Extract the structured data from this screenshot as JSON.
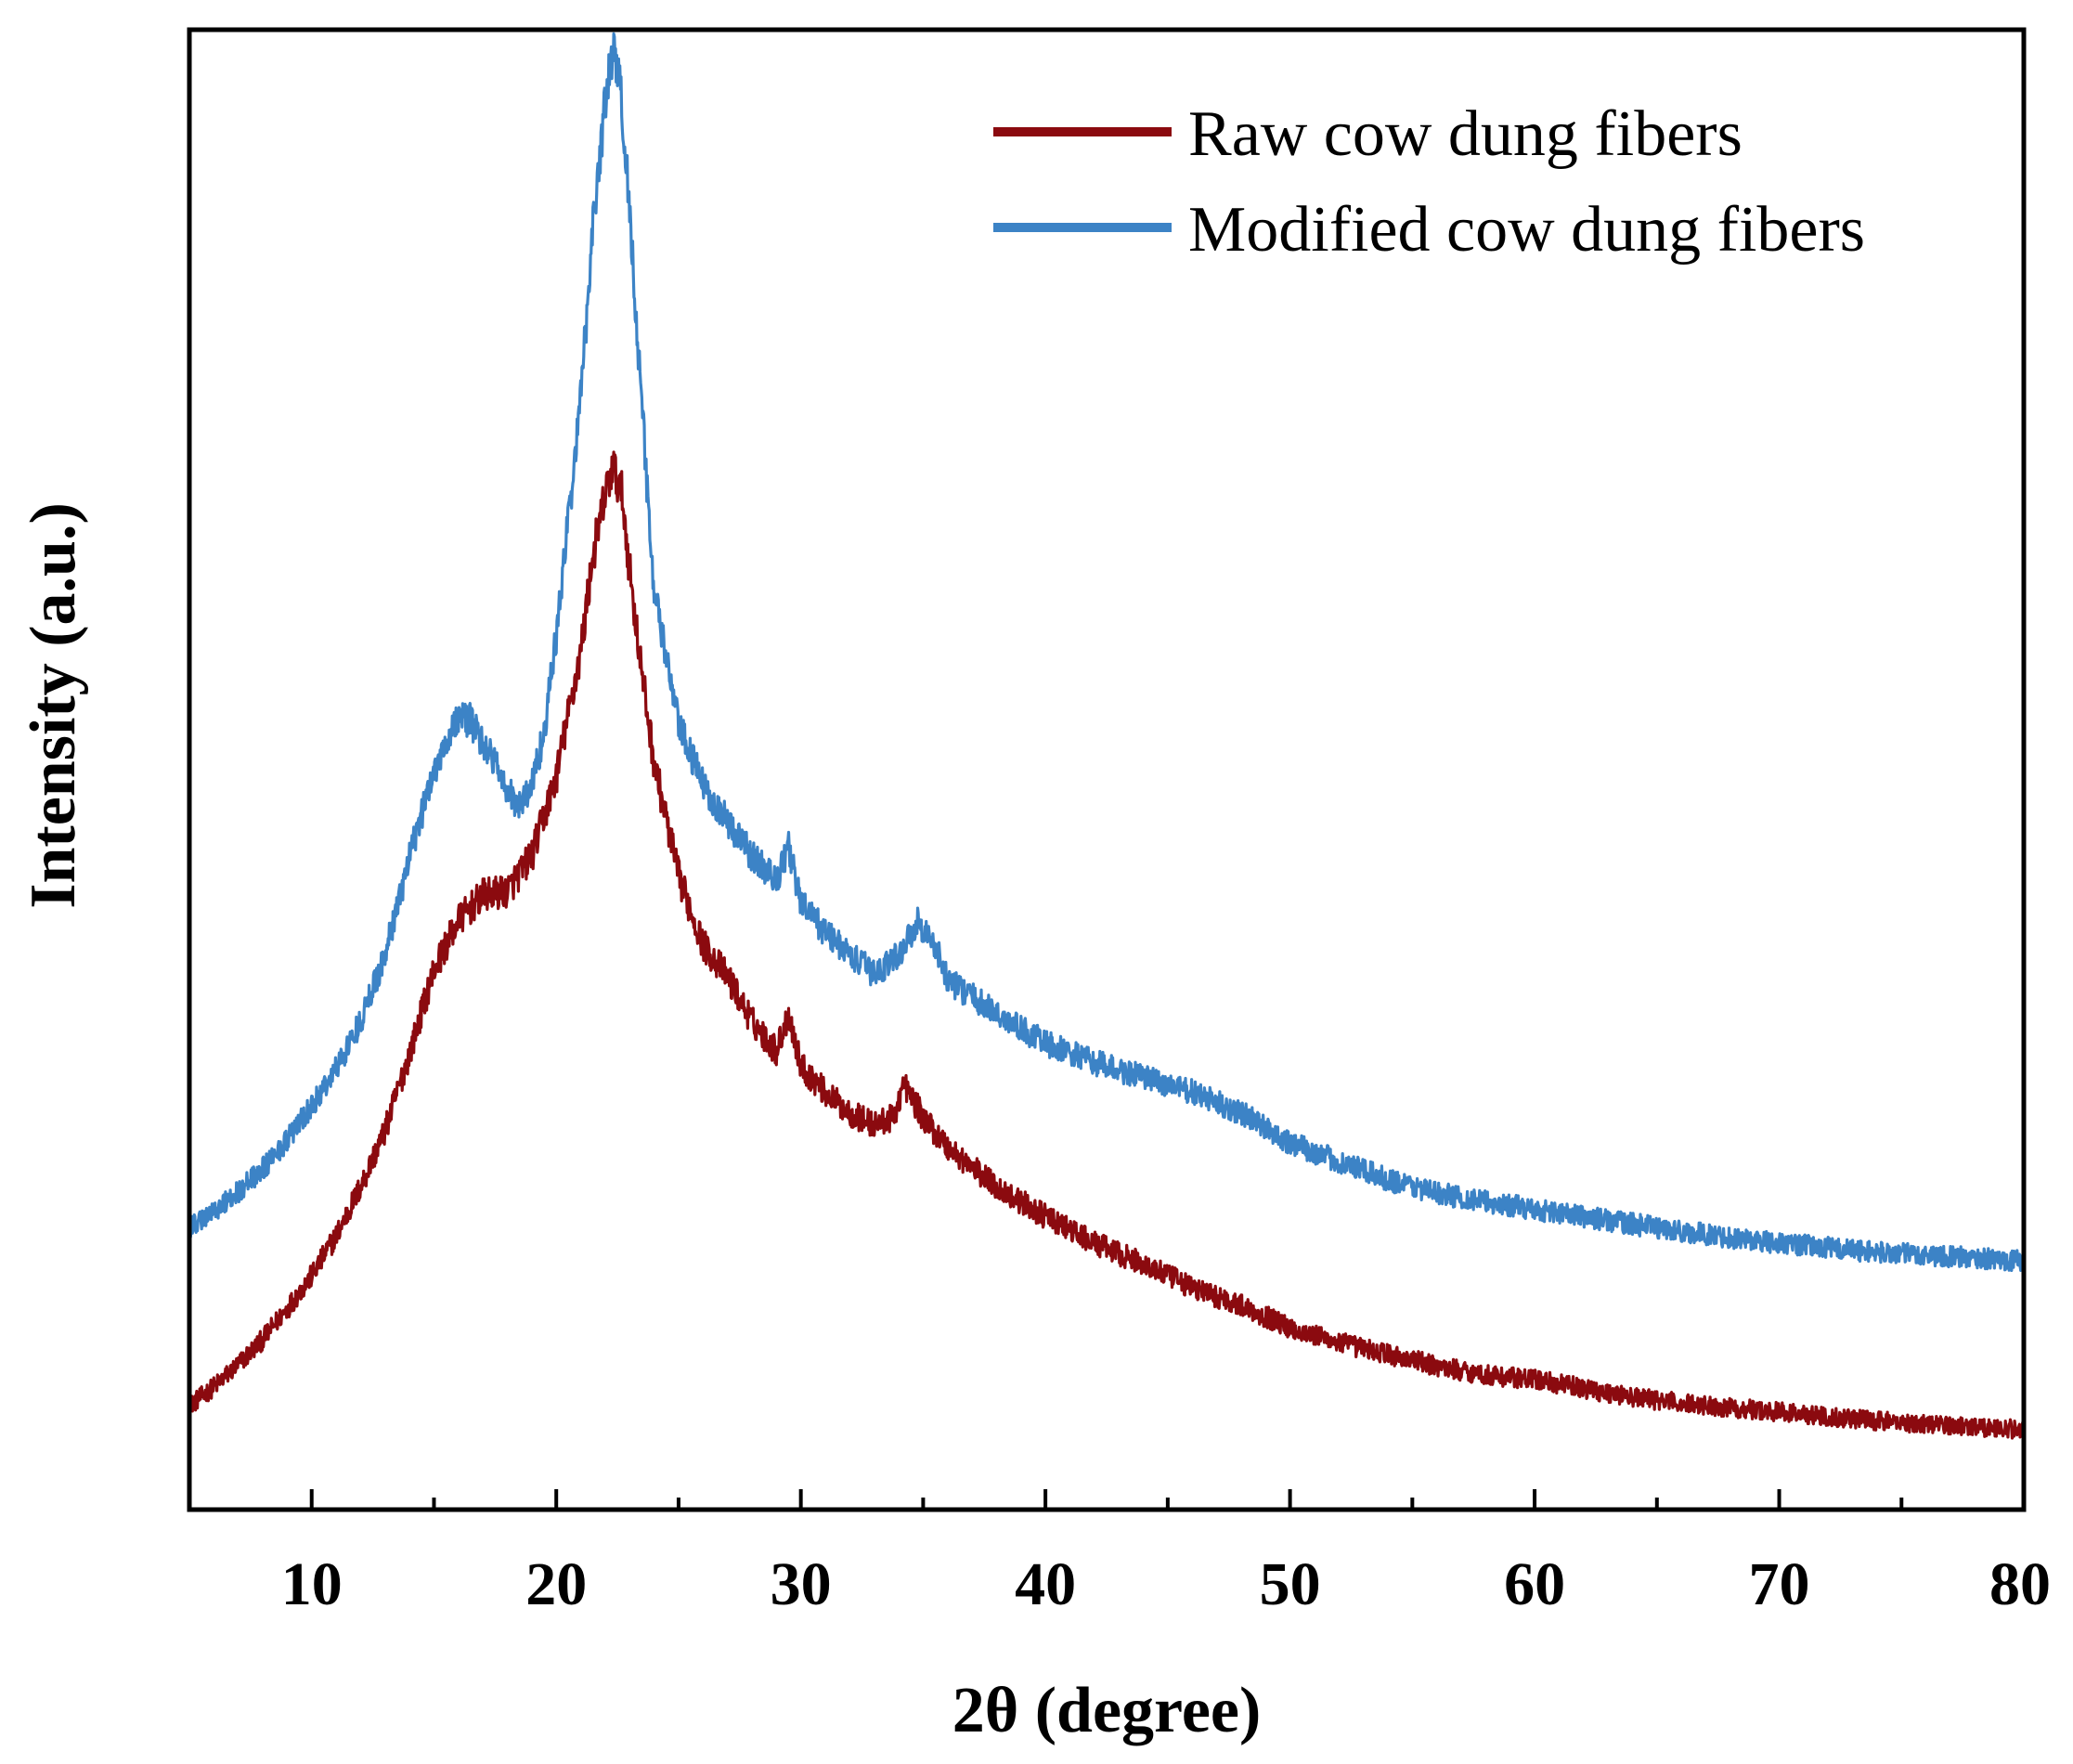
{
  "chart_data": {
    "type": "line",
    "title": "",
    "xlabel": "2θ (degree)",
    "ylabel": "Intensity (a.u.)",
    "xlim": [
      5,
      80
    ],
    "ylim": [
      0,
      100
    ],
    "xticks": [
      10,
      20,
      30,
      40,
      50,
      60,
      70,
      80
    ],
    "x_minor_step": 5,
    "yticks_visible": false,
    "grid": false,
    "legend_position": "top-right",
    "series": [
      {
        "name": "Raw cow dung fibers",
        "color": "#8B0A0F",
        "noise": 1.0,
        "points": [
          [
            5,
            7.0
          ],
          [
            6,
            8.3
          ],
          [
            7,
            9.8
          ],
          [
            8,
            11.5
          ],
          [
            9,
            13.6
          ],
          [
            10,
            15.8
          ],
          [
            11,
            18.5
          ],
          [
            12,
            21.8
          ],
          [
            13,
            25.6
          ],
          [
            14,
            30.8
          ],
          [
            15,
            36.5
          ],
          [
            16,
            39.8
          ],
          [
            17,
            41.5
          ],
          [
            18,
            41.8
          ],
          [
            19,
            44.2
          ],
          [
            20,
            49.5
          ],
          [
            21,
            58.0
          ],
          [
            21.5,
            64.5
          ],
          [
            22,
            68.5
          ],
          [
            22.3,
            70.5
          ],
          [
            22.7,
            68.5
          ],
          [
            23,
            63.5
          ],
          [
            23.5,
            56.5
          ],
          [
            24,
            50.5
          ],
          [
            25,
            42.8
          ],
          [
            26,
            38.2
          ],
          [
            27,
            36.0
          ],
          [
            28,
            33.0
          ],
          [
            29,
            31.0
          ],
          [
            29.5,
            33.5
          ],
          [
            30,
            30.0
          ],
          [
            31,
            28.2
          ],
          [
            32,
            26.8
          ],
          [
            33,
            26.0
          ],
          [
            33.8,
            26.5
          ],
          [
            34.2,
            28.8
          ],
          [
            35,
            26.5
          ],
          [
            36,
            24.5
          ],
          [
            38,
            21.8
          ],
          [
            40,
            19.8
          ],
          [
            42,
            18.0
          ],
          [
            44,
            16.6
          ],
          [
            46,
            15.0
          ],
          [
            48,
            13.8
          ],
          [
            50,
            12.3
          ],
          [
            50.5,
            12.0
          ],
          [
            52,
            11.3
          ],
          [
            54,
            10.5
          ],
          [
            56,
            9.7
          ],
          [
            58,
            9.1
          ],
          [
            60,
            8.8
          ],
          [
            62,
            8.2
          ],
          [
            64,
            7.6
          ],
          [
            66,
            7.2
          ],
          [
            68,
            6.9
          ],
          [
            70,
            6.6
          ],
          [
            72,
            6.3
          ],
          [
            74,
            6.0
          ],
          [
            76,
            5.8
          ],
          [
            78,
            5.6
          ],
          [
            80,
            5.4
          ]
        ]
      },
      {
        "name": "Modified cow dung fibers",
        "color": "#3C83C6",
        "noise": 0.9,
        "points": [
          [
            5,
            19.0
          ],
          [
            6,
            20.2
          ],
          [
            7,
            21.5
          ],
          [
            8,
            23.0
          ],
          [
            9,
            25.0
          ],
          [
            10,
            27.2
          ],
          [
            11,
            29.8
          ],
          [
            12,
            33.0
          ],
          [
            13,
            37.5
          ],
          [
            14,
            44.0
          ],
          [
            15,
            50.0
          ],
          [
            15.5,
            52.0
          ],
          [
            16,
            53.5
          ],
          [
            16.5,
            53.3
          ],
          [
            17,
            51.8
          ],
          [
            17.5,
            50.5
          ],
          [
            18,
            48.5
          ],
          [
            18.5,
            47.5
          ],
          [
            19,
            49.0
          ],
          [
            19.5,
            52.5
          ],
          [
            20,
            59.0
          ],
          [
            21,
            75.0
          ],
          [
            21.5,
            87.0
          ],
          [
            22,
            95.0
          ],
          [
            22.3,
            98.5
          ],
          [
            22.6,
            96.5
          ],
          [
            23,
            88.0
          ],
          [
            23.5,
            74.5
          ],
          [
            24,
            62.0
          ],
          [
            25,
            53.0
          ],
          [
            26,
            49.0
          ],
          [
            27,
            46.5
          ],
          [
            28,
            44.2
          ],
          [
            29,
            42.5
          ],
          [
            29.5,
            44.8
          ],
          [
            30,
            41.0
          ],
          [
            31,
            39.0
          ],
          [
            32,
            37.5
          ],
          [
            33,
            36.2
          ],
          [
            34,
            37.5
          ],
          [
            34.8,
            39.8
          ],
          [
            35.5,
            38.0
          ],
          [
            36,
            35.8
          ],
          [
            38,
            33.5
          ],
          [
            40,
            31.5
          ],
          [
            42,
            30.2
          ],
          [
            44,
            29.2
          ],
          [
            46,
            28.2
          ],
          [
            48,
            26.8
          ],
          [
            49,
            25.8
          ],
          [
            50,
            24.8
          ],
          [
            52,
            23.5
          ],
          [
            54,
            22.3
          ],
          [
            56,
            21.4
          ],
          [
            58,
            20.8
          ],
          [
            60,
            20.3
          ],
          [
            62,
            19.8
          ],
          [
            64,
            19.3
          ],
          [
            66,
            18.8
          ],
          [
            68,
            18.4
          ],
          [
            70,
            18.0
          ],
          [
            72,
            17.7
          ],
          [
            74,
            17.4
          ],
          [
            76,
            17.2
          ],
          [
            78,
            17.0
          ],
          [
            80,
            16.8
          ]
        ]
      }
    ]
  }
}
